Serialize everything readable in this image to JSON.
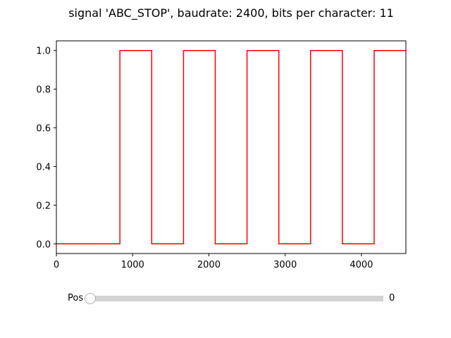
{
  "chart_data": {
    "type": "line",
    "title": "signal 'ABC_STOP', baudrate: 2400, bits per character: 11",
    "xlabel": "",
    "ylabel": "",
    "xlim": [
      0,
      4583
    ],
    "ylim": [
      -0.05,
      1.05
    ],
    "x_ticks": [
      0,
      1000,
      2000,
      3000,
      4000
    ],
    "y_ticks": [
      0.0,
      0.2,
      0.4,
      0.6,
      0.8,
      1.0
    ],
    "x_tick_labels": [
      "0",
      "1000",
      "2000",
      "3000",
      "4000"
    ],
    "y_tick_labels": [
      "0.0",
      "0.2",
      "0.4",
      "0.6",
      "0.8",
      "1.0"
    ],
    "grid": false,
    "series": [
      {
        "color": "#ff0000",
        "step": true,
        "x": [
          0,
          833,
          833,
          1250,
          1250,
          1667,
          1667,
          2083,
          2083,
          2500,
          2500,
          2917,
          2917,
          3333,
          3333,
          3750,
          3750,
          4167,
          4167,
          4583
        ],
        "y": [
          0,
          0,
          1,
          1,
          0,
          0,
          1,
          1,
          0,
          0,
          1,
          1,
          0,
          0,
          1,
          1,
          0,
          0,
          1,
          1
        ]
      }
    ]
  },
  "slider": {
    "label": "Pos",
    "value": "0",
    "fraction": 0
  }
}
